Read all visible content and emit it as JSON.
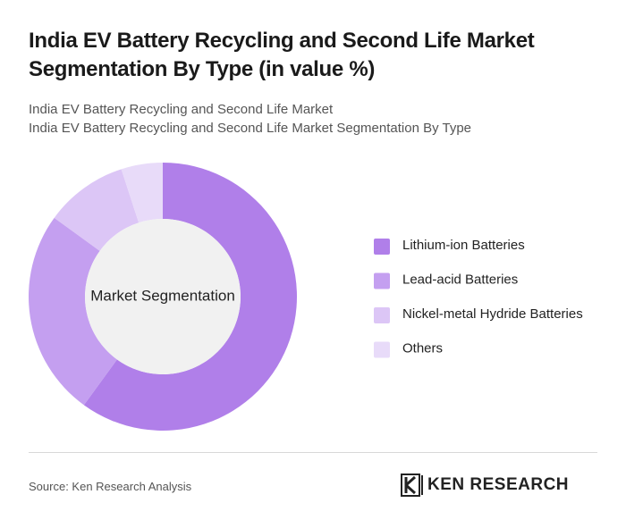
{
  "chart_data": {
    "type": "donut",
    "title": "India EV Battery Recycling and Second Life Market Segmentation By Type (in value %)",
    "subtitles": [
      "India EV Battery Recycling and Second Life Market",
      "India EV Battery Recycling and Second Life Market Segmentation By Type"
    ],
    "center_label": "Market Segmentation",
    "categories": [
      "Lithium-ion Batteries",
      "Lead-acid Batteries",
      "Nickel-metal Hydride Batteries",
      "Others"
    ],
    "values": [
      60,
      25,
      10,
      5
    ],
    "colors": [
      "#b07fe9",
      "#c49ff0",
      "#dcc6f6",
      "#e8dbf9"
    ],
    "legend": "right"
  },
  "footer": {
    "source": "Source: Ken Research Analysis",
    "logo": "KEN RESEARCH"
  }
}
